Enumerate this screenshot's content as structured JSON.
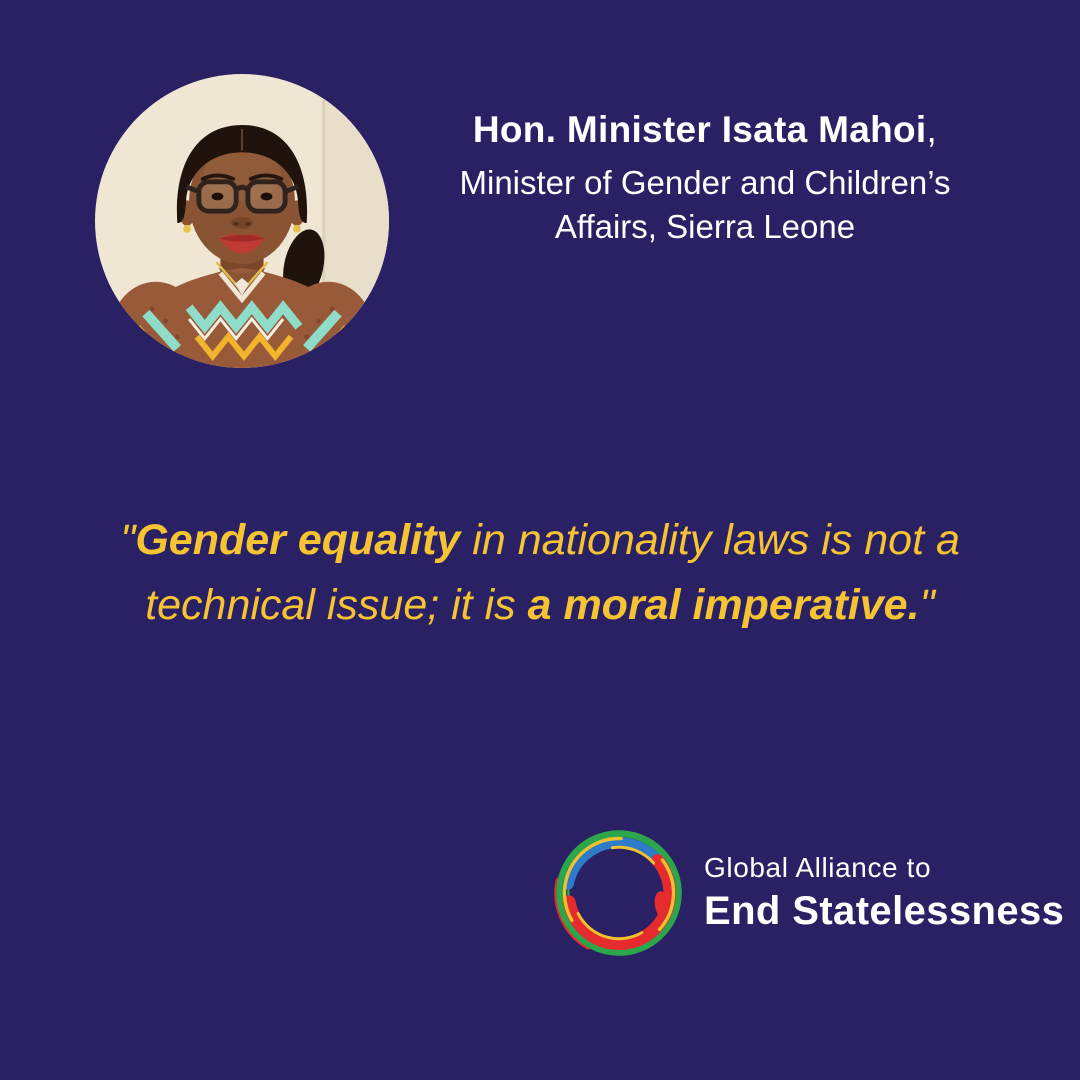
{
  "card": {
    "background": "#2A2064"
  },
  "speaker": {
    "name": "Hon. Minister Isata Mahoi",
    "name_suffix": ",",
    "title_line1": "Minister of Gender and Children’s",
    "title_line2": "Affairs, Sierra Leone"
  },
  "quote": {
    "color": "#F6C332",
    "lines": [
      {
        "segments": [
          {
            "text": "\"",
            "bold": false
          },
          {
            "text": "Gender equality",
            "bold": true
          },
          {
            "text": " in nationality laws is not a",
            "bold": false
          }
        ]
      },
      {
        "segments": [
          {
            "text": "technical issue; it is ",
            "bold": false
          },
          {
            "text": "a moral imperative.",
            "bold": true
          },
          {
            "text": "\"",
            "bold": false
          }
        ]
      }
    ]
  },
  "logo": {
    "line1": "Global Alliance to",
    "line2": "End Statelessness",
    "ring_colors": {
      "green": "#2BA64B",
      "blue": "#2E7BC9",
      "red": "#E62B2E",
      "yellow": "#EFC12F"
    }
  }
}
